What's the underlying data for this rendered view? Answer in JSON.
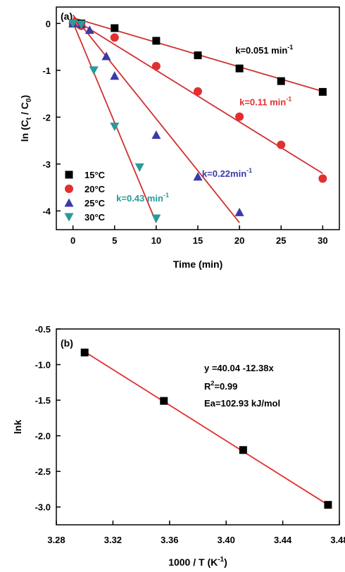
{
  "chart_data": [
    {
      "type": "scatter",
      "panel_label": "(a)",
      "xlabel": "Time (min)",
      "ylabel": {
        "main": "ln (C",
        "sub1": "t",
        "mid": " / C",
        "sub2": "0",
        "end": ")"
      },
      "xlim": [
        -2,
        32
      ],
      "ylim": [
        -4.4,
        0.35
      ],
      "xticks": [
        0,
        5,
        10,
        15,
        20,
        25,
        30
      ],
      "yticks": [
        0,
        -1,
        -2,
        -3,
        -4
      ],
      "legend_position": "bottom-left",
      "series": [
        {
          "name": "15°C",
          "marker": "square",
          "color": "#000000",
          "x": [
            0,
            1,
            5,
            10,
            15,
            20,
            25,
            30
          ],
          "y": [
            0,
            0,
            -0.1,
            -0.37,
            -0.68,
            -0.96,
            -1.23,
            -1.46
          ],
          "fit": {
            "x": [
              0,
              30
            ],
            "y": [
              0.12,
              -1.45
            ]
          },
          "annotation": {
            "text": "k=0.051 min",
            "sup": "-1",
            "color": "#000000",
            "at": [
              19.5,
              -0.64
            ]
          }
        },
        {
          "name": "20°C",
          "marker": "circle",
          "color": "#e23030",
          "x": [
            0,
            1,
            5,
            10,
            15,
            20,
            25,
            30
          ],
          "y": [
            0,
            -0.05,
            -0.3,
            -0.91,
            -1.45,
            -1.99,
            -2.59,
            -3.31
          ],
          "fit": {
            "x": [
              0,
              30
            ],
            "y": [
              0.1,
              -3.2
            ]
          },
          "annotation": {
            "text": "k=0.11 min",
            "sup": "-1",
            "color": "#e23030",
            "at": [
              20,
              -1.75
            ]
          }
        },
        {
          "name": "25°C",
          "marker": "triangle-up",
          "color": "#3a3aaa",
          "x": [
            0,
            1,
            2,
            4,
            5,
            10,
            15,
            20
          ],
          "y": [
            0,
            -0.02,
            -0.14,
            -0.7,
            -1.12,
            -2.38,
            -3.27,
            -4.03
          ],
          "fit": {
            "x": [
              0,
              20
            ],
            "y": [
              0.18,
              -4.25
            ]
          },
          "annotation": {
            "text": "k=0.22min",
            "sup": "-1",
            "color": "#3a3aaa",
            "at": [
              15.5,
              -3.27
            ]
          }
        },
        {
          "name": "30°C",
          "marker": "triangle-down",
          "color": "#2a9a9a",
          "x": [
            0,
            1,
            2.5,
            5,
            8,
            10
          ],
          "y": [
            0,
            -0.02,
            -1.0,
            -2.2,
            -3.07,
            -4.16
          ],
          "fit": {
            "x": [
              0,
              10
            ],
            "y": [
              0.02,
              -4.25
            ]
          },
          "annotation": {
            "text": "k=0.43 min",
            "sup": "-1",
            "color": "#2a9a9a",
            "at": [
              5.2,
              -3.8
            ]
          }
        }
      ]
    },
    {
      "type": "scatter",
      "panel_label": "(b)",
      "xlabel": {
        "main": "1000 / T (K",
        "sup": "-1",
        "end": ")"
      },
      "ylabel": "lnk",
      "xlim": [
        3.28,
        3.48
      ],
      "ylim": [
        -3.25,
        -0.5
      ],
      "xticks": [
        "3.28",
        "3.32",
        "3.36",
        "3.40",
        "3.44",
        "3.48"
      ],
      "yticks": [
        "-0.5",
        "-1.0",
        "-1.5",
        "-2.0",
        "-2.5",
        "-3.0"
      ],
      "series": [
        {
          "marker": "square",
          "color": "#000000",
          "x": [
            3.3,
            3.356,
            3.412,
            3.472
          ],
          "y": [
            -0.83,
            -1.51,
            -2.2,
            -2.97
          ],
          "fit": {
            "x": [
              3.3,
              3.472
            ],
            "y": [
              -0.82,
              -2.97
            ],
            "color": "#e23030"
          }
        }
      ],
      "annotations": {
        "equation": "y =40.04 -12.38x",
        "r2_main": "R",
        "r2_sup": "2",
        "r2_value": "=0.99",
        "ea": "Ea=102.93 kJ/mol"
      }
    }
  ]
}
